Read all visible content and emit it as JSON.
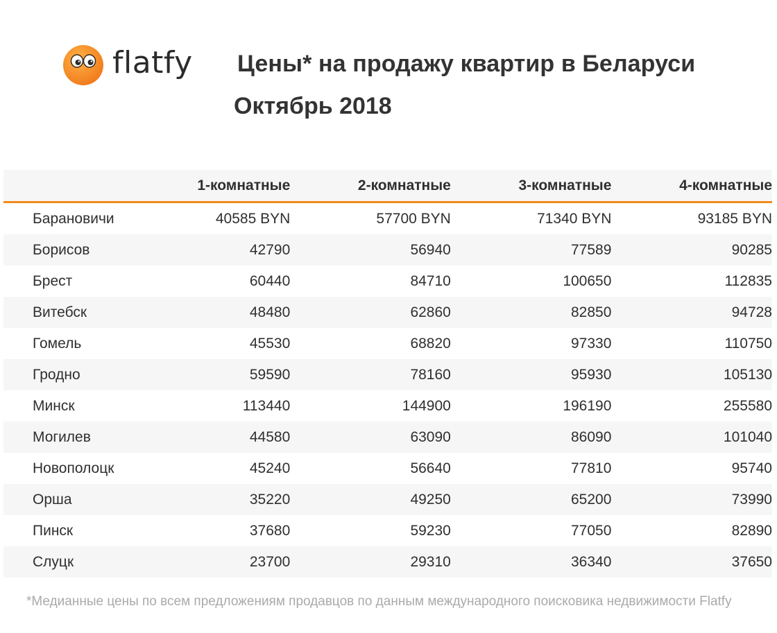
{
  "brand": {
    "name": "flatfy",
    "logo_icon": "eyes-logo-icon",
    "logo_color": "#f0821e"
  },
  "header": {
    "title": "Цены* на продажу квартир в Беларуси",
    "subtitle": "Октябрь 2018"
  },
  "table": {
    "accent_color": "#f08a1c",
    "columns": [
      "",
      "1-комнатные",
      "2-комнатные",
      "3-комнатные",
      "4-комнатные"
    ],
    "rows": [
      {
        "city": "Барановичи",
        "values": [
          "40585 BYN",
          "57700 BYN",
          "71340 BYN",
          "93185 BYN"
        ]
      },
      {
        "city": "Борисов",
        "values": [
          "42790",
          "56940",
          "77589",
          "90285"
        ]
      },
      {
        "city": "Брест",
        "values": [
          "60440",
          "84710",
          "100650",
          "112835"
        ]
      },
      {
        "city": "Витебск",
        "values": [
          "48480",
          "62860",
          "82850",
          "94728"
        ]
      },
      {
        "city": "Гомель",
        "values": [
          "45530",
          "68820",
          "97330",
          "110750"
        ]
      },
      {
        "city": "Гродно",
        "values": [
          "59590",
          "78160",
          "95930",
          "105130"
        ]
      },
      {
        "city": "Минск",
        "values": [
          "113440",
          "144900",
          "196190",
          "255580"
        ]
      },
      {
        "city": "Могилев",
        "values": [
          "44580",
          "63090",
          "86090",
          "101040"
        ]
      },
      {
        "city": "Новополоцк",
        "values": [
          "45240",
          "56640",
          "77810",
          "95740"
        ]
      },
      {
        "city": "Орша",
        "values": [
          "35220",
          "49250",
          "65200",
          "73990"
        ]
      },
      {
        "city": "Пинск",
        "values": [
          "37680",
          "59230",
          "77050",
          "82890"
        ]
      },
      {
        "city": "Слуцк",
        "values": [
          "23700",
          "29310",
          "36340",
          "37650"
        ]
      }
    ]
  },
  "footnote": "*Медианные цены по всем предложениям продавцов по данным международного поисковика недвижимости Flatfy"
}
